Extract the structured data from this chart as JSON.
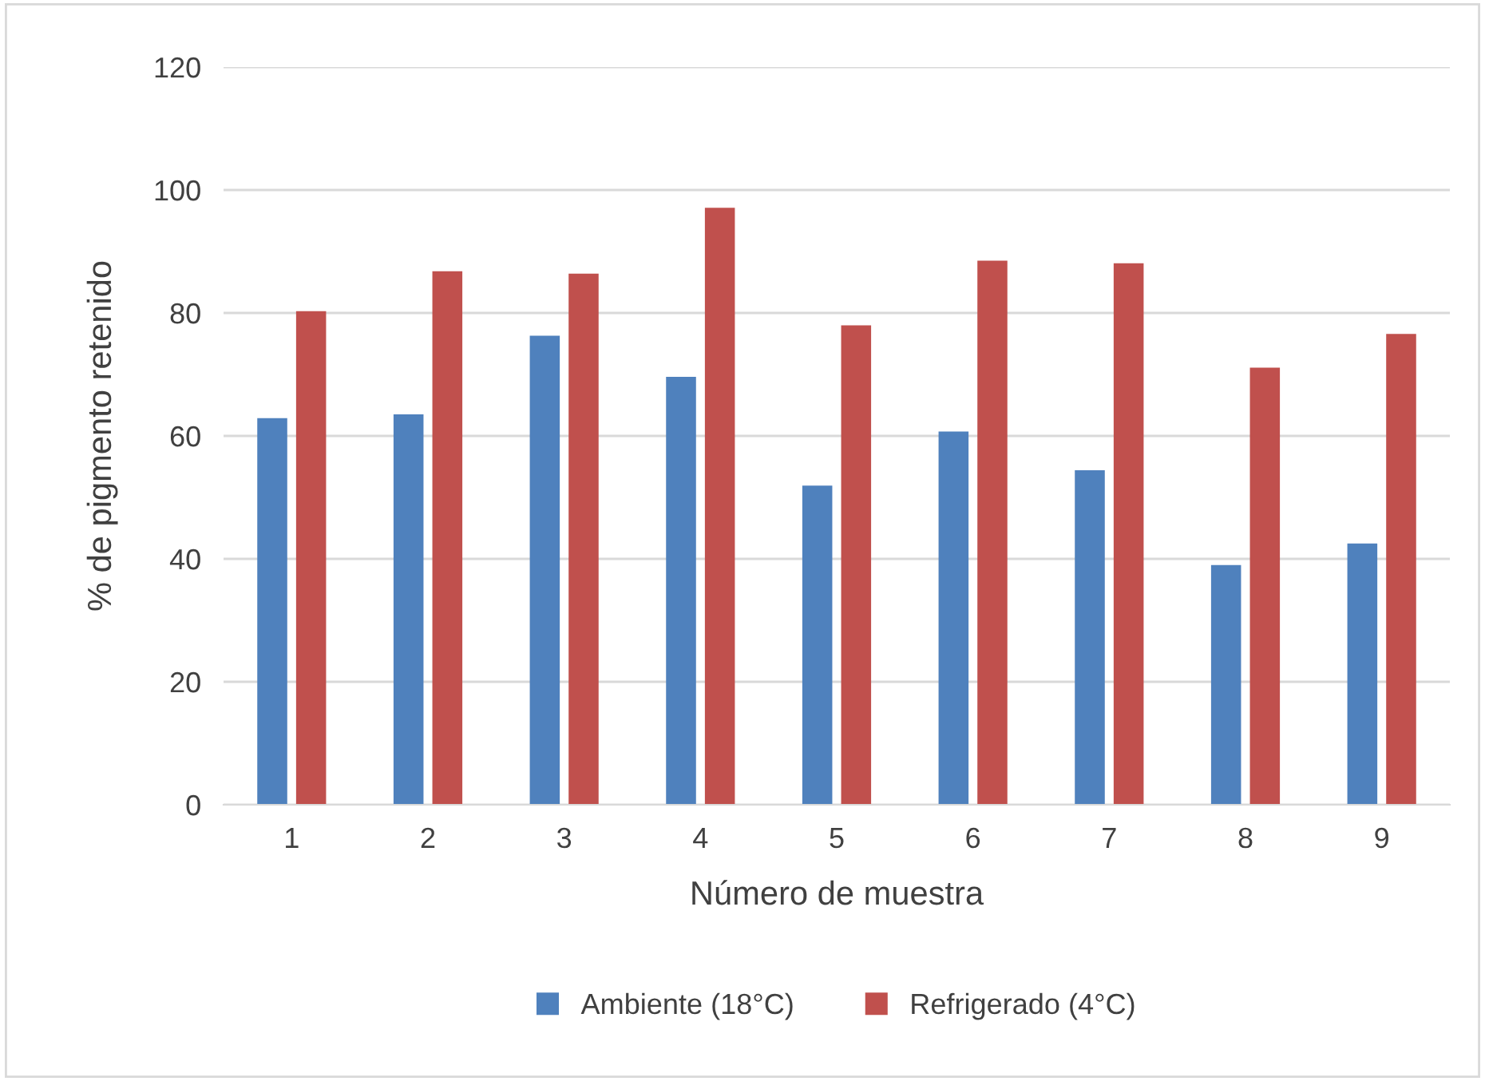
{
  "chart_data": {
    "type": "bar",
    "xlabel": "Número de muestra",
    "ylabel": "% de pigmento retenido",
    "categories": [
      "1",
      "2",
      "3",
      "4",
      "5",
      "6",
      "7",
      "8",
      "9"
    ],
    "series": [
      {
        "name": "Ambiente (18°C)",
        "color": "#4f81bd",
        "values": [
          62.9,
          63.5,
          76.3,
          69.6,
          51.9,
          60.7,
          54.4,
          39.0,
          42.5
        ]
      },
      {
        "name": "Refrigerado (4°C)",
        "color": "#c0504d",
        "values": [
          80.3,
          86.8,
          86.4,
          97.1,
          78.0,
          88.5,
          88.1,
          71.1,
          76.6
        ]
      }
    ],
    "ylim": [
      0,
      120
    ],
    "yticks": [
      0,
      20,
      40,
      60,
      80,
      100,
      120
    ],
    "grid": "y",
    "legend": "bottom"
  }
}
